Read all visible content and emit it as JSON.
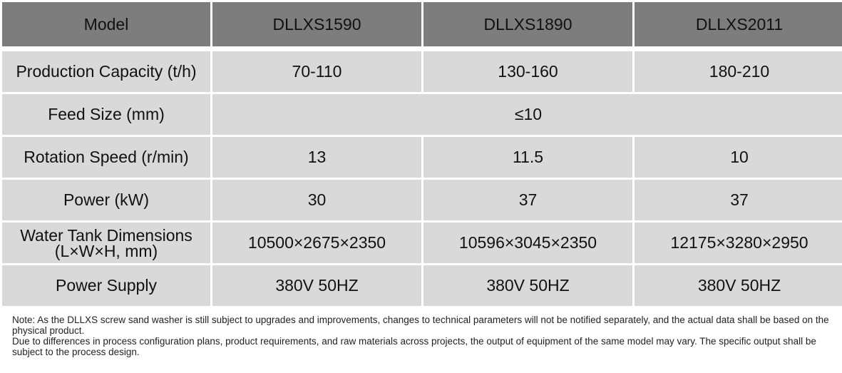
{
  "table": {
    "header": {
      "model_label": "Model",
      "models": [
        "DLLXS1590",
        "DLLXS1890",
        "DLLXS2011"
      ]
    },
    "rows": [
      {
        "label": "Production Capacity (t/h)",
        "values": [
          "70-110",
          "130-160",
          "180-210"
        ]
      },
      {
        "label": "Feed Size (mm)",
        "merged_value": "≤10"
      },
      {
        "label": "Rotation Speed (r/min)",
        "values": [
          "13",
          "11.5",
          "10"
        ]
      },
      {
        "label": "Power (kW)",
        "values": [
          "30",
          "37",
          "37"
        ]
      },
      {
        "label_line1": "Water Tank Dimensions",
        "label_line2": "(L×W×H, mm)",
        "values": [
          "10500×2675×2350",
          "10596×3045×2350",
          "12175×3280×2950"
        ]
      },
      {
        "label": "Power Supply",
        "values": [
          "380V 50HZ",
          "380V 50HZ",
          "380V 50HZ"
        ]
      }
    ],
    "colors": {
      "header_bg": "#7d7d7d",
      "cell_bg": "#d9d9d9"
    }
  },
  "notes": [
    "Note: As the DLLXS screw sand washer is still subject to upgrades and improvements, changes to technical parameters will not be notified separately, and the actual data shall be based on the physical product.",
    "Due to differences in process configuration plans, product requirements, and raw materials across projects, the output of equipment of the same model may vary. The specific output shall be subject to the process design."
  ]
}
